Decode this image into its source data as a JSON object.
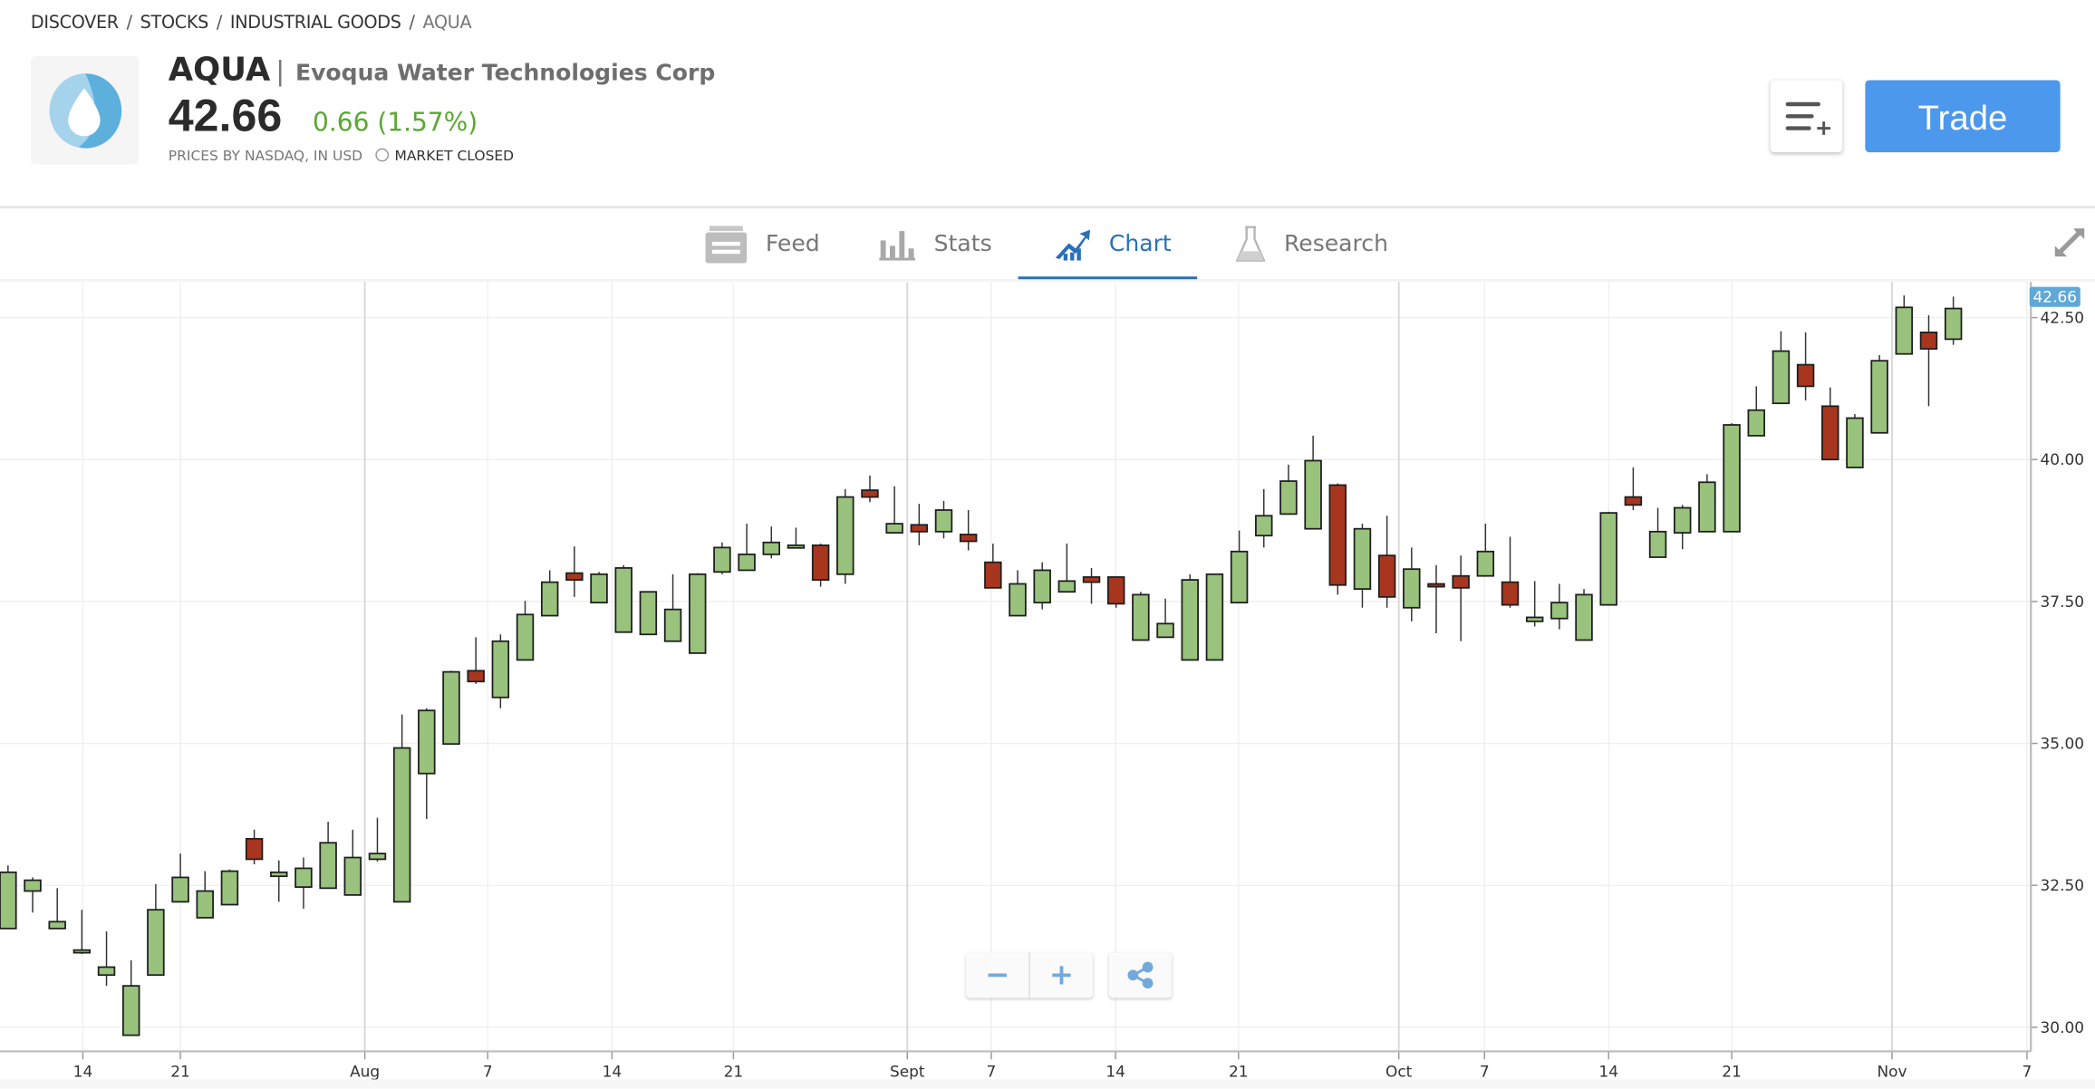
{
  "breadcrumb": [
    "DISCOVER",
    "STOCKS",
    "INDUSTRIAL GOODS",
    "AQUA"
  ],
  "instrument": {
    "ticker": "AQUA",
    "separator": "|",
    "name": "Evoqua Water Technologies Corp",
    "price": "42.66",
    "change": "0.66 (1.57%)",
    "source": "PRICES BY NASDAQ, IN USD",
    "market_status": "MARKET CLOSED",
    "logo_colors": [
      "#a5d3ec",
      "#5db0dc"
    ]
  },
  "actions": {
    "watchlist_icon": "list-plus-icon",
    "trade_label": "Trade"
  },
  "tabs": [
    {
      "label": "Feed",
      "icon": "feed-icon",
      "active": false
    },
    {
      "label": "Stats",
      "icon": "bar-chart-icon",
      "active": false
    },
    {
      "label": "Chart",
      "icon": "trend-chart-icon",
      "active": true
    },
    {
      "label": "Research",
      "icon": "flask-icon",
      "active": false
    }
  ],
  "colors": {
    "accent": "#2a6fb8",
    "trade": "#4c98ec",
    "up": "#99c27c",
    "down": "#a8361f",
    "positive_text": "#5aa832",
    "price_badge": "#5fa8d8"
  },
  "chart_controls": {
    "zoom_out": "−",
    "zoom_in": "+",
    "share_icon": "share-icon"
  },
  "chart_data": {
    "type": "candlestick",
    "ylim": [
      29.5,
      42.8
    ],
    "yticks": [
      30,
      32.5,
      35,
      37.5,
      40,
      42.5
    ],
    "ytick_labels": [
      "30.00",
      "32.50",
      "35.00",
      "37.50",
      "40.00",
      "42.50"
    ],
    "last_price_label": "42.66",
    "last_price": 42.66,
    "xticks": [
      {
        "label": "14",
        "index": 3.04,
        "month": false
      },
      {
        "label": "21",
        "index": 7.0,
        "month": false
      },
      {
        "label": "Aug",
        "index": 14.49,
        "month": true
      },
      {
        "label": "7",
        "index": 19.48,
        "month": false
      },
      {
        "label": "14",
        "index": 24.53,
        "month": false
      },
      {
        "label": "21",
        "index": 29.46,
        "month": false
      },
      {
        "label": "Sept",
        "index": 36.52,
        "month": true
      },
      {
        "label": "7",
        "index": 39.93,
        "month": false
      },
      {
        "label": "14",
        "index": 44.98,
        "month": false
      },
      {
        "label": "21",
        "index": 49.97,
        "month": false
      },
      {
        "label": "Oct",
        "index": 56.48,
        "month": true
      },
      {
        "label": "7",
        "index": 59.96,
        "month": false
      },
      {
        "label": "14",
        "index": 65.0,
        "month": false
      },
      {
        "label": "21",
        "index": 70.0,
        "month": false
      },
      {
        "label": "Nov",
        "index": 76.51,
        "month": true
      },
      {
        "label": "7",
        "index": 81.99,
        "month": false
      }
    ],
    "ohlc_fields": [
      "open",
      "high",
      "low",
      "close"
    ],
    "candles": [
      [
        31.74,
        32.85,
        31.74,
        32.73
      ],
      [
        32.4,
        32.64,
        32.02,
        32.59
      ],
      [
        31.74,
        32.45,
        31.74,
        31.86
      ],
      [
        31.32,
        32.07,
        31.29,
        31.36
      ],
      [
        30.92,
        31.69,
        30.73,
        31.06
      ],
      [
        29.86,
        31.18,
        29.86,
        30.73
      ],
      [
        30.92,
        32.52,
        30.92,
        32.07
      ],
      [
        32.21,
        33.06,
        32.21,
        32.64
      ],
      [
        31.93,
        32.75,
        31.93,
        32.4
      ],
      [
        32.16,
        32.78,
        32.16,
        32.75
      ],
      [
        33.32,
        33.48,
        32.87,
        32.96
      ],
      [
        32.66,
        32.94,
        32.21,
        32.73
      ],
      [
        32.47,
        32.99,
        32.09,
        32.8
      ],
      [
        32.45,
        33.62,
        32.45,
        33.25
      ],
      [
        32.33,
        33.48,
        32.33,
        32.99
      ],
      [
        32.96,
        33.69,
        32.92,
        33.06
      ],
      [
        32.21,
        35.51,
        32.21,
        34.92
      ],
      [
        34.47,
        35.62,
        33.67,
        35.58
      ],
      [
        34.99,
        36.28,
        34.99,
        36.26
      ],
      [
        36.28,
        36.87,
        36.05,
        36.09
      ],
      [
        35.81,
        36.92,
        35.62,
        36.8
      ],
      [
        36.47,
        37.51,
        36.47,
        37.27
      ],
      [
        37.25,
        38.05,
        37.25,
        37.84
      ],
      [
        38.0,
        38.47,
        37.58,
        37.88
      ],
      [
        37.48,
        38.02,
        37.48,
        37.98
      ],
      [
        36.96,
        38.14,
        36.96,
        38.09
      ],
      [
        36.92,
        37.67,
        36.92,
        37.67
      ],
      [
        36.8,
        37.98,
        36.8,
        37.36
      ],
      [
        36.59,
        38.0,
        36.59,
        37.98
      ],
      [
        38.02,
        38.54,
        37.98,
        38.45
      ],
      [
        38.05,
        38.87,
        38.05,
        38.33
      ],
      [
        38.33,
        38.82,
        38.26,
        38.54
      ],
      [
        38.45,
        38.8,
        38.45,
        38.49
      ],
      [
        38.49,
        38.52,
        37.76,
        37.88
      ],
      [
        37.98,
        39.48,
        37.81,
        39.34
      ],
      [
        39.46,
        39.72,
        39.25,
        39.34
      ],
      [
        38.71,
        39.53,
        38.71,
        38.87
      ],
      [
        38.85,
        39.22,
        38.49,
        38.73
      ],
      [
        38.73,
        39.27,
        38.61,
        39.11
      ],
      [
        38.68,
        39.11,
        38.4,
        38.56
      ],
      [
        38.19,
        38.52,
        37.74,
        37.74
      ],
      [
        37.25,
        38.05,
        37.25,
        37.81
      ],
      [
        37.48,
        38.19,
        37.36,
        38.05
      ],
      [
        37.67,
        38.52,
        37.67,
        37.86
      ],
      [
        37.93,
        38.09,
        37.46,
        37.84
      ],
      [
        37.93,
        37.93,
        37.39,
        37.46
      ],
      [
        36.82,
        37.67,
        36.82,
        37.62
      ],
      [
        36.87,
        37.55,
        36.87,
        37.11
      ],
      [
        36.47,
        37.98,
        36.47,
        37.88
      ],
      [
        36.47,
        37.98,
        36.47,
        37.98
      ],
      [
        37.48,
        38.75,
        37.48,
        38.38
      ],
      [
        38.66,
        39.48,
        38.45,
        39.01
      ],
      [
        39.04,
        39.91,
        39.04,
        39.62
      ],
      [
        38.78,
        40.42,
        38.78,
        39.98
      ],
      [
        39.55,
        39.58,
        37.62,
        37.79
      ],
      [
        37.72,
        38.87,
        37.39,
        38.78
      ],
      [
        38.31,
        39.01,
        37.39,
        37.58
      ],
      [
        37.39,
        38.45,
        37.15,
        38.07
      ],
      [
        37.81,
        38.14,
        36.94,
        37.76
      ],
      [
        37.95,
        38.31,
        36.8,
        37.74
      ],
      [
        37.95,
        38.87,
        37.95,
        38.38
      ],
      [
        37.84,
        38.64,
        37.39,
        37.44
      ],
      [
        37.15,
        37.86,
        37.06,
        37.22
      ],
      [
        37.2,
        37.81,
        37.01,
        37.48
      ],
      [
        36.82,
        37.72,
        36.82,
        37.62
      ],
      [
        37.44,
        39.08,
        37.44,
        39.06
      ],
      [
        39.34,
        39.86,
        39.11,
        39.2
      ],
      [
        38.28,
        39.15,
        38.28,
        38.73
      ],
      [
        38.71,
        39.2,
        38.42,
        39.15
      ],
      [
        38.73,
        39.74,
        38.73,
        39.6
      ],
      [
        38.73,
        40.64,
        38.73,
        40.61
      ],
      [
        40.42,
        41.29,
        40.42,
        40.87
      ],
      [
        40.99,
        42.26,
        40.99,
        41.91
      ],
      [
        41.67,
        42.24,
        41.04,
        41.29
      ],
      [
        40.94,
        41.27,
        40.0,
        40.0
      ],
      [
        39.86,
        40.8,
        39.86,
        40.73
      ],
      [
        40.47,
        41.84,
        40.47,
        41.74
      ],
      [
        41.86,
        42.89,
        41.86,
        42.68
      ],
      [
        42.24,
        42.54,
        40.94,
        41.95
      ],
      [
        42.12,
        42.87,
        42.02,
        42.66
      ]
    ]
  }
}
